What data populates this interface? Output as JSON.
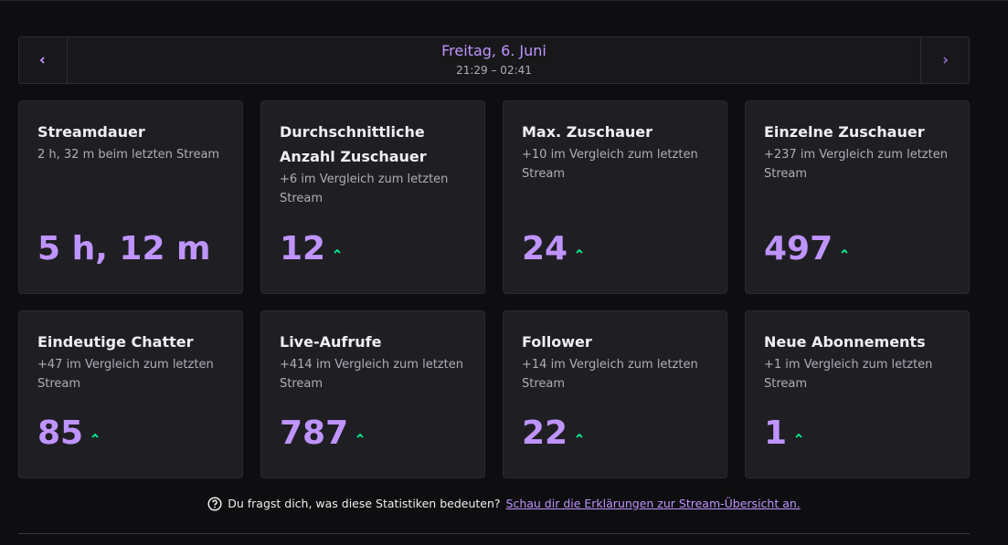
{
  "header": {
    "date": "Freitag, 6. Juni",
    "time_range": "21:29 – 02:41"
  },
  "cards": [
    {
      "title": "Streamdauer",
      "subtitle": "2 h, 32 m beim letzten Stream",
      "value": "5 h, 12 m",
      "trend_up": false
    },
    {
      "title": "Durchschnittliche Anzahl Zuschauer",
      "subtitle": "+6 im Vergleich zum letzten Stream",
      "value": 12,
      "trend_up": true
    },
    {
      "title": "Max. Zuschauer",
      "subtitle": "+10 im Vergleich zum letzten Stream",
      "value": 24,
      "trend_up": true
    },
    {
      "title": "Einzelne Zuschauer",
      "subtitle": "+237 im Vergleich zum letzten Stream",
      "value": 497,
      "trend_up": true
    },
    {
      "title": "Eindeutige Chatter",
      "subtitle": "+47 im Vergleich zum letzten Stream",
      "value": 85,
      "trend_up": true
    },
    {
      "title": "Live-Aufrufe",
      "subtitle": "+414 im Vergleich zum letzten Stream",
      "value": 787,
      "trend_up": true
    },
    {
      "title": "Follower",
      "subtitle": "+14 im Vergleich zum letzten Stream",
      "value": 22,
      "trend_up": true
    },
    {
      "title": "Neue Abonnements",
      "subtitle": "+1 im Vergleich zum letzten Stream",
      "value": 1,
      "trend_up": true
    }
  ],
  "footer": {
    "question": "Du fragst dich, was diese Statistiken bedeuten?",
    "link": "Schau dir die Erklärungen zur Stream-Übersicht an."
  }
}
